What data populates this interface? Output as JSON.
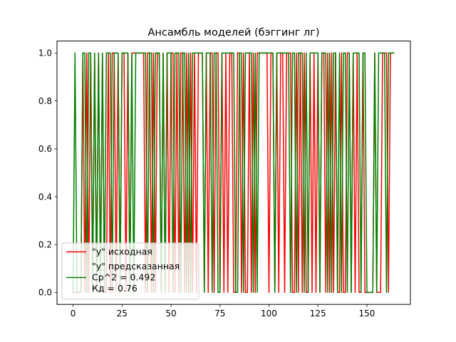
{
  "chart_data": {
    "type": "line",
    "title": "Ансамбль моделей (бэггинг лг)",
    "xlabel": "",
    "ylabel": "",
    "xlim": [
      -8.2,
      172.2
    ],
    "ylim": [
      -0.05,
      1.05
    ],
    "x_ticks": [
      0,
      25,
      50,
      75,
      100,
      125,
      150
    ],
    "y_ticks": [
      0.0,
      0.2,
      0.4,
      0.6,
      0.8,
      1.0
    ],
    "x_tick_labels": [
      "0",
      "25",
      "50",
      "75",
      "100",
      "125",
      "150"
    ],
    "y_tick_labels": [
      "0.0",
      "0.2",
      "0.4",
      "0.6",
      "0.8",
      "1.0"
    ],
    "grid": false,
    "legend_position": "lower-left",
    "legend": [
      {
        "label": "\"y\" исходная",
        "color": "#ff0000"
      },
      {
        "label": "\"y\" предсказанная\nСр^2 = 0.492\nКд = 0.76",
        "color": "#008000"
      }
    ],
    "series": [
      {
        "name": "\"y\" исходная",
        "color": "#ff0000",
        "x": [
          0,
          1,
          2,
          3,
          4,
          5,
          6,
          7,
          8,
          9,
          10,
          11,
          12,
          13,
          14,
          15,
          16,
          17,
          18,
          19,
          20,
          21,
          22,
          23,
          24,
          25,
          26,
          27,
          28,
          29,
          30,
          31,
          32,
          33,
          34,
          35,
          36,
          37,
          38,
          39,
          40,
          41,
          42,
          43,
          44,
          45,
          46,
          47,
          48,
          49,
          50,
          51,
          52,
          53,
          54,
          55,
          56,
          57,
          58,
          59,
          60,
          61,
          62,
          63,
          64,
          65,
          66,
          67,
          68,
          69,
          70,
          71,
          72,
          73,
          74,
          75,
          76,
          77,
          78,
          79,
          80,
          81,
          82,
          83,
          84,
          85,
          86,
          87,
          88,
          89,
          90,
          91,
          92,
          93,
          94,
          95,
          96,
          97,
          98,
          99,
          100,
          101,
          102,
          103,
          104,
          105,
          106,
          107,
          108,
          109,
          110,
          111,
          112,
          113,
          114,
          115,
          116,
          117,
          118,
          119,
          120,
          121,
          122,
          123,
          124,
          125,
          126,
          127,
          128,
          129,
          130,
          131,
          132,
          133,
          134,
          135,
          136,
          137,
          138,
          139,
          140,
          141,
          142,
          143,
          144,
          145,
          146,
          147,
          148,
          149,
          150,
          151,
          152,
          153,
          154,
          155,
          156,
          157,
          158,
          159,
          160,
          161,
          162,
          163,
          164
        ],
        "values": [
          0,
          0,
          0,
          0,
          0,
          1,
          0,
          1,
          0,
          1,
          0,
          1,
          0,
          1,
          0,
          1,
          0,
          0,
          1,
          0,
          1,
          1,
          0,
          1,
          0,
          1,
          1,
          0,
          1,
          0,
          1,
          1,
          1,
          1,
          1,
          1,
          1,
          0,
          1,
          1,
          0,
          1,
          0,
          1,
          1,
          0,
          1,
          0,
          1,
          0,
          1,
          1,
          0,
          1,
          0,
          1,
          1,
          0,
          1,
          0,
          1,
          0,
          1,
          0,
          1,
          1,
          1,
          0,
          1,
          0,
          1,
          1,
          0,
          1,
          1,
          0,
          1,
          0,
          1,
          0,
          1,
          1,
          0,
          0,
          1,
          1,
          0,
          1,
          0,
          0,
          1,
          0,
          1,
          0,
          1,
          1,
          1,
          1,
          1,
          1,
          0,
          1,
          1,
          0,
          1,
          0,
          1,
          1,
          0,
          1,
          1,
          1,
          0,
          0,
          1,
          0,
          1,
          0,
          1,
          0,
          0,
          1,
          0,
          1,
          0,
          1,
          0,
          1,
          1,
          0,
          1,
          0,
          1,
          0,
          1,
          0,
          0,
          1,
          0,
          0,
          1,
          1,
          0,
          1,
          0,
          1,
          0,
          0,
          1,
          0,
          0,
          0,
          0,
          0,
          1,
          0,
          0,
          0,
          1,
          1,
          1,
          0,
          1,
          1,
          1
        ]
      },
      {
        "name": "\"y\" предсказанная",
        "color": "#008000",
        "x": [
          0,
          1,
          2,
          3,
          4,
          5,
          6,
          7,
          8,
          9,
          10,
          11,
          12,
          13,
          14,
          15,
          16,
          17,
          18,
          19,
          20,
          21,
          22,
          23,
          24,
          25,
          26,
          27,
          28,
          29,
          30,
          31,
          32,
          33,
          34,
          35,
          36,
          37,
          38,
          39,
          40,
          41,
          42,
          43,
          44,
          45,
          46,
          47,
          48,
          49,
          50,
          51,
          52,
          53,
          54,
          55,
          56,
          57,
          58,
          59,
          60,
          61,
          62,
          63,
          64,
          65,
          66,
          67,
          68,
          69,
          70,
          71,
          72,
          73,
          74,
          75,
          76,
          77,
          78,
          79,
          80,
          81,
          82,
          83,
          84,
          85,
          86,
          87,
          88,
          89,
          90,
          91,
          92,
          93,
          94,
          95,
          96,
          97,
          98,
          99,
          100,
          101,
          102,
          103,
          104,
          105,
          106,
          107,
          108,
          109,
          110,
          111,
          112,
          113,
          114,
          115,
          116,
          117,
          118,
          119,
          120,
          121,
          122,
          123,
          124,
          125,
          126,
          127,
          128,
          129,
          130,
          131,
          132,
          133,
          134,
          135,
          136,
          137,
          138,
          139,
          140,
          141,
          142,
          143,
          144,
          145,
          146,
          147,
          148,
          149,
          150,
          151,
          152,
          153,
          154,
          155,
          156,
          157,
          158,
          159,
          160,
          161,
          162,
          163,
          164
        ],
        "values": [
          0,
          1,
          0,
          0,
          0,
          1,
          1,
          0,
          1,
          1,
          0,
          1,
          0,
          1,
          0,
          1,
          0,
          1,
          1,
          1,
          0,
          1,
          1,
          1,
          0,
          1,
          1,
          1,
          1,
          0,
          1,
          0,
          1,
          1,
          1,
          1,
          1,
          1,
          0,
          1,
          1,
          0,
          1,
          1,
          1,
          0,
          1,
          0,
          1,
          1,
          1,
          0,
          1,
          1,
          1,
          0,
          1,
          1,
          0,
          1,
          0,
          1,
          1,
          1,
          1,
          1,
          1,
          0,
          1,
          1,
          1,
          0,
          1,
          1,
          0,
          0,
          1,
          1,
          1,
          1,
          1,
          1,
          1,
          0,
          0,
          1,
          1,
          0,
          1,
          1,
          1,
          1,
          0,
          1,
          0,
          1,
          1,
          1,
          1,
          1,
          1,
          1,
          1,
          0,
          1,
          1,
          1,
          1,
          1,
          1,
          1,
          0,
          1,
          1,
          0,
          1,
          1,
          1,
          0,
          1,
          0,
          1,
          1,
          1,
          1,
          1,
          0,
          1,
          1,
          1,
          0,
          1,
          0,
          1,
          1,
          0,
          1,
          0,
          1,
          1,
          0,
          1,
          0,
          1,
          1,
          1,
          1,
          0,
          1,
          1,
          0,
          0,
          0,
          0,
          1,
          0,
          1,
          1,
          1,
          1,
          0,
          1,
          1,
          1,
          1
        ]
      }
    ]
  }
}
